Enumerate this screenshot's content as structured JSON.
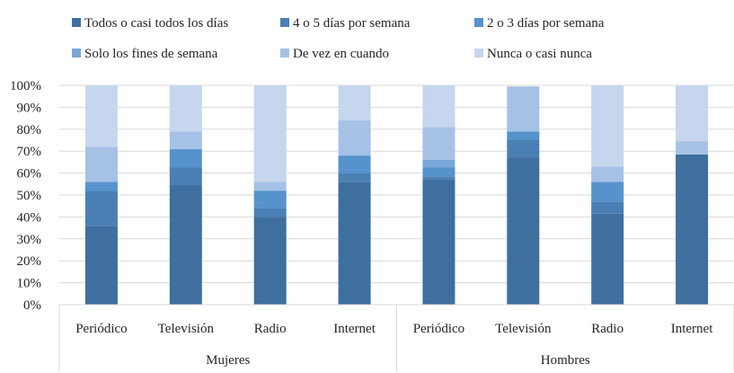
{
  "chart_data": {
    "type": "bar",
    "stacked": true,
    "percent": true,
    "title": "",
    "xlabel": "",
    "ylabel": "",
    "ylim": [
      0,
      100
    ],
    "yticks": [
      "0%",
      "10%",
      "20%",
      "30%",
      "40%",
      "50%",
      "60%",
      "70%",
      "80%",
      "90%",
      "100%"
    ],
    "grid": true,
    "legend_position": "top",
    "groups": [
      {
        "label": "Mujeres",
        "categories": [
          "Periódico",
          "Televisión",
          "Radio",
          "Internet"
        ]
      },
      {
        "label": "Hombres",
        "categories": [
          "Periódico",
          "Televisión",
          "Radio",
          "Internet"
        ]
      }
    ],
    "series": [
      {
        "name": "Todos o casi todos los días",
        "color": "#3e6f9e",
        "values": [
          36,
          54.5,
          40,
          56,
          57,
          67,
          41.5,
          68.5
        ]
      },
      {
        "name": "4 o 5 días por semana",
        "color": "#4a7fb4",
        "values": [
          16,
          8,
          4,
          4,
          1.5,
          8,
          5.5,
          0
        ]
      },
      {
        "name": "2 o 3 días por semana",
        "color": "#5692cc",
        "values": [
          4,
          8.5,
          8,
          8,
          4,
          4,
          9,
          0
        ]
      },
      {
        "name": "Solo los fines de semana",
        "color": "#7aa7d8",
        "values": [
          0,
          0,
          0,
          0,
          3.5,
          0,
          0,
          0
        ]
      },
      {
        "name": "De vez en cuando",
        "color": "#a6c1e6",
        "values": [
          16,
          8,
          4,
          16,
          15,
          20.5,
          7,
          6
        ]
      },
      {
        "name": "Nunca o casi nunca",
        "color": "#c5d6ee",
        "values": [
          28,
          21,
          44,
          16,
          19,
          0,
          37,
          25.5
        ]
      }
    ]
  }
}
